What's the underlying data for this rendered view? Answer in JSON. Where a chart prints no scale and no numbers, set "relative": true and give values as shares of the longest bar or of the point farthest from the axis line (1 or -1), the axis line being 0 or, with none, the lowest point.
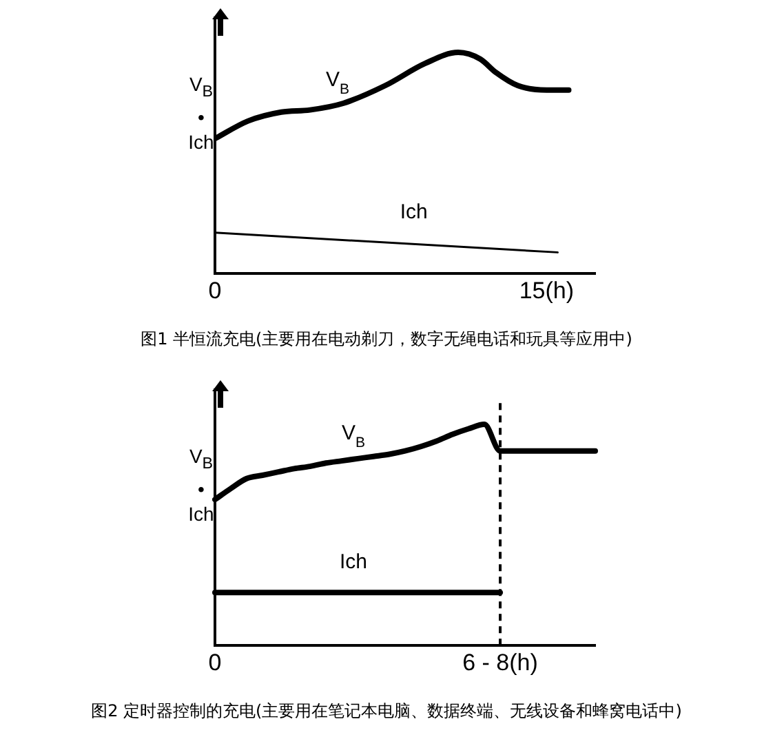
{
  "chart_data": [
    {
      "type": "line",
      "title": "图1 半恒流充电(主要用在电动剃刀，数字无绳电话和玩具等应用中)",
      "ylabel": "V$_{B}$ • Ich",
      "relative": true,
      "xlim": [
        0,
        17.2
      ],
      "xticks": [
        0,
        {
          "value": 15,
          "label": "15(h)"
        }
      ],
      "grid": false,
      "legend": false,
      "marker": "none",
      "series": [
        {
          "name": "V$_{B}$",
          "color": "#000000",
          "x": [
            0,
            1.5,
            3.0,
            4.3,
            5.8,
            7.7,
            9.5,
            11.0,
            12.0,
            12.7,
            13.7,
            15.0,
            16.0
          ],
          "values": [
            0.61,
            0.69,
            0.73,
            0.74,
            0.77,
            0.85,
            0.95,
            1.0,
            0.97,
            0.91,
            0.85,
            0.83,
            0.83
          ]
        },
        {
          "name": "Ich",
          "color": "#000000",
          "x": [
            0,
            15.5
          ],
          "values": [
            0.185,
            0.096
          ]
        }
      ]
    },
    {
      "type": "line",
      "title": "图2 定时器控制的充电(主要用在笔记本电脑、数据终端、无线设备和蜂窝电话中)",
      "ylabel": "V$_{B}$ • Ich",
      "relative": true,
      "categories": [
        "0",
        null,
        null,
        null,
        null,
        null,
        null,
        null,
        null,
        null,
        null,
        null,
        null,
        null,
        null,
        null,
        null,
        null,
        "6 - 8(h)",
        null,
        null,
        null,
        null,
        null,
        null
      ],
      "grid": false,
      "legend": false,
      "marker": "none",
      "ref_lines": [
        {
          "axis": "x",
          "value": "6 - 8(h)",
          "line_style": "dashed",
          "color": "#000000"
        }
      ],
      "series": [
        {
          "name": "V$_{B}$",
          "color": "#000000",
          "values": [
            0.66,
            0.71,
            0.755,
            0.77,
            0.785,
            0.8,
            0.81,
            0.825,
            0.835,
            0.845,
            0.855,
            0.865,
            0.88,
            0.9,
            0.925,
            0.955,
            0.98,
            1.0,
            0.88,
            0.88,
            0.88,
            0.88,
            0.88,
            0.88,
            0.88
          ]
        },
        {
          "name": "Ich",
          "color": "#000000",
          "values": [
            0.24,
            0.24,
            0.24,
            0.24,
            0.24,
            0.24,
            0.24,
            0.24,
            0.24,
            0.24,
            0.24,
            0.24,
            0.24,
            0.24,
            0.24,
            0.24,
            0.24,
            0.24,
            0.24,
            null,
            null,
            null,
            null,
            null,
            null
          ]
        }
      ]
    }
  ]
}
